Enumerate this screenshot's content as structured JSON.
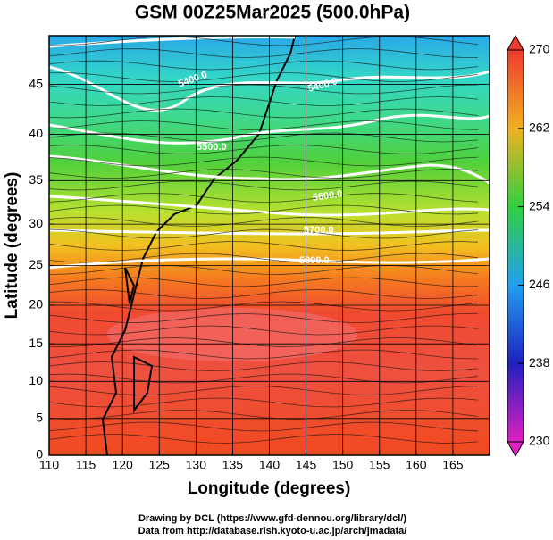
{
  "chart_data": {
    "type": "map",
    "title": "GSM 00Z25Mar2025 (500.0hPa)",
    "x_label": "Longitude (degrees)",
    "y_label": "Latitude  (degrees)",
    "projection": "mercator",
    "xlim": [
      110,
      170
    ],
    "ylim": [
      0,
      49.5
    ],
    "xticks": [
      110,
      115,
      120,
      125,
      130,
      135,
      140,
      145,
      150,
      155,
      160,
      165
    ],
    "yticks": [
      0,
      5,
      10,
      15,
      20,
      25,
      30,
      35,
      40,
      45
    ],
    "grid": true,
    "contour_labels": [
      "5400.0",
      "5400.0",
      "5500.0",
      "5600.0",
      "5700.0",
      "5800.0"
    ],
    "colorbar": {
      "lim": [
        230,
        270
      ],
      "ticks": [
        270,
        262,
        254,
        246,
        238,
        230
      ]
    },
    "footer": [
      "Drawing by DCL (https://www.gfd-dennou.org/library/dcl/)",
      "Data from http://database.rish.kyoto-u.ac.jp/arch/jmadata/"
    ]
  }
}
